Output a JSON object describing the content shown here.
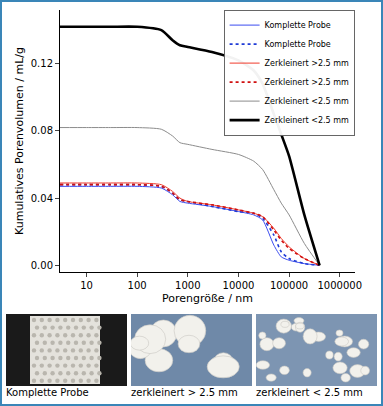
{
  "chart_data": {
    "type": "line",
    "xlabel": "Porengröße / nm",
    "ylabel": "Kumulatives Porenvolumen / mL/g",
    "log": "x",
    "grid": false,
    "legend": "top right",
    "xlim": [
      3,
      2000000
    ],
    "ylim": [
      -0.004,
      0.152
    ],
    "xticks": [
      10,
      100,
      1000,
      10000,
      100000,
      1000000
    ],
    "yticks": [
      {
        "value": 0,
        "label": "0.00"
      },
      {
        "value": 0.04,
        "label": "0.04"
      },
      {
        "value": 0.08,
        "label": "0.08"
      },
      {
        "value": 0.12,
        "label": "0.12"
      }
    ],
    "x": [
      3,
      10,
      30,
      100,
      300,
      500,
      700,
      1000,
      3000,
      10000,
      20000,
      30000,
      50000,
      70000,
      100000,
      200000,
      400000
    ],
    "series": [
      {
        "name": "Komplette Probe",
        "color": "#3b4cf0",
        "line_style": "solid",
        "values": [
          0.047,
          0.047,
          0.047,
          0.047,
          0.046,
          0.042,
          0.038,
          0.037,
          0.035,
          0.032,
          0.03,
          0.027,
          0.012,
          0.005,
          0.003,
          0.001,
          0
        ]
      },
      {
        "name": "Komplette Probe",
        "color": "#1f3bd6",
        "line_style": "dot",
        "values": [
          0.048,
          0.048,
          0.048,
          0.048,
          0.047,
          0.043,
          0.039,
          0.038,
          0.035,
          0.032,
          0.031,
          0.028,
          0.018,
          0.008,
          0.004,
          0.001,
          0
        ]
      },
      {
        "name": "Zerkleinert >2.5 mm",
        "color": "#f03a2a",
        "line_style": "solid",
        "values": [
          0.049,
          0.049,
          0.049,
          0.049,
          0.048,
          0.044,
          0.04,
          0.038,
          0.036,
          0.033,
          0.031,
          0.029,
          0.022,
          0.016,
          0.011,
          0.004,
          0
        ]
      },
      {
        "name": "Zerkleinert >2.5 mm",
        "color": "#d01010",
        "line_style": "dot",
        "values": [
          0.048,
          0.048,
          0.048,
          0.048,
          0.047,
          0.043,
          0.039,
          0.038,
          0.036,
          0.033,
          0.031,
          0.029,
          0.021,
          0.015,
          0.01,
          0.004,
          0
        ]
      },
      {
        "name": "Zerkleinert <2.5 mm",
        "color": "#8c8c8c",
        "line_style": "solid",
        "values": [
          0.082,
          0.082,
          0.082,
          0.082,
          0.081,
          0.077,
          0.073,
          0.072,
          0.069,
          0.066,
          0.062,
          0.057,
          0.045,
          0.037,
          0.03,
          0.013,
          0
        ]
      },
      {
        "name": "Zerkleinert <2.5 mm",
        "color": "#000000",
        "line_style": "thick",
        "values": [
          0.142,
          0.142,
          0.142,
          0.142,
          0.14,
          0.134,
          0.131,
          0.13,
          0.127,
          0.122,
          0.116,
          0.108,
          0.09,
          0.078,
          0.065,
          0.03,
          0
        ]
      }
    ]
  },
  "images": [
    {
      "caption": "Komplette Probe"
    },
    {
      "caption": "zerkleinert > 2.5 mm"
    },
    {
      "caption": "zerkleinert < 2.5 mm"
    }
  ]
}
